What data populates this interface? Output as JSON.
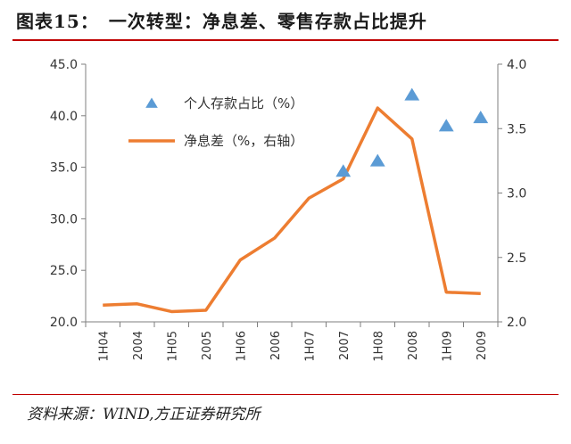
{
  "figure_title": "图表15：　一次转型：净息差、零售存款占比提升",
  "source_note": "资料来源：WIND,方正证券研究所",
  "colors": {
    "line": "#ED7D31",
    "marker": "#5B9BD5",
    "axis": "#7f7f7f",
    "rule": "#c00000"
  },
  "chart_data": {
    "type": "line",
    "categories": [
      "1H04",
      "2004",
      "1H05",
      "2005",
      "1H06",
      "2006",
      "1H07",
      "2007",
      "1H08",
      "2008",
      "1H09",
      "2009"
    ],
    "left_axis": {
      "min": 20,
      "max": 45,
      "step": 5,
      "ticks": [
        "20.0",
        "25.0",
        "30.0",
        "35.0",
        "40.0",
        "45.0"
      ]
    },
    "right_axis": {
      "min": 2.0,
      "max": 4.0,
      "step": 0.5,
      "ticks": [
        "2.0",
        "2.5",
        "3.0",
        "3.5",
        "4.0"
      ]
    },
    "series": [
      {
        "name": "个人存款占比（%）",
        "kind": "scatter",
        "marker": "triangle",
        "axis": "left",
        "values": [
          null,
          null,
          null,
          null,
          null,
          null,
          null,
          34.6,
          35.6,
          42.0,
          39.0,
          39.8
        ]
      },
      {
        "name": "净息差（%，右轴）",
        "kind": "line",
        "axis": "right",
        "values": [
          2.13,
          2.14,
          2.08,
          2.09,
          2.48,
          2.65,
          2.96,
          3.11,
          3.66,
          3.42,
          2.23,
          2.22
        ]
      }
    ],
    "legend": "upper-left"
  }
}
